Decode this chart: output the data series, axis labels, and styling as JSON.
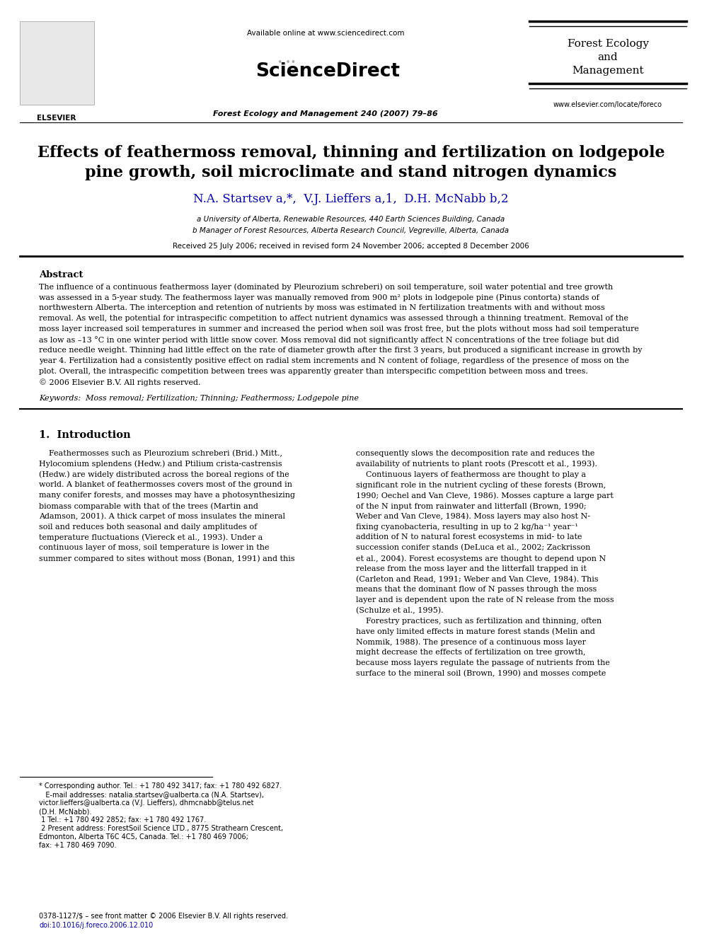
{
  "title_line1": "Effects of feathermoss removal, thinning and fertilization on lodgepole",
  "title_line2": "pine growth, soil microclimate and stand nitrogen dynamics",
  "authors": "N.A. Startsev a,*,  V.J. Lieffers a,1,  D.H. McNabb b,2",
  "affil_a": "a University of Alberta, Renewable Resources, 440 Earth Sciences Building, Canada",
  "affil_b": "b Manager of Forest Resources, Alberta Research Council, Vegreville, Alberta, Canada",
  "received": "Received 25 July 2006; received in revised form 24 November 2006; accepted 8 December 2006",
  "journal_header": "Forest Ecology and Management 240 (2007) 79–86",
  "available_online": "Available online at www.sciencedirect.com",
  "journal_name_line1": "Forest Ecology",
  "journal_name_line2": "and",
  "journal_name_line3": "Management",
  "website": "www.elsevier.com/locate/foreco",
  "abstract_title": "Abstract",
  "keywords": "Keywords:  Moss removal; Fertilization; Thinning; Feathermoss; Lodgepole pine",
  "section1_title": "1.  Introduction",
  "footnote_star": "* Corresponding author. Tel.: +1 780 492 3417; fax: +1 780 492 6827.",
  "footnote_email1": "   E-mail addresses: natalia.startsev@ualberta.ca (N.A. Startsev),",
  "footnote_email2": "victor.lieffers@ualberta.ca (V.J. Lieffers), dhmcnabb@telus.net",
  "footnote_email3": "(D.H. McNabb).",
  "footnote_1": "1 Tel.: +1 780 492 2852; fax: +1 780 492 1767.",
  "footnote_2a": "2 Present address: ForestSoil Science LTD., 8775 Strathearn Crescent,",
  "footnote_2b": "Edmonton, Alberta T6C 4C5, Canada. Tel.: +1 780 469 7006;",
  "footnote_2c": "fax: +1 780 469 7090.",
  "issn": "0378-1127/$ – see front matter © 2006 Elsevier B.V. All rights reserved.",
  "doi": "doi:10.1016/j.foreco.2006.12.010",
  "bg_color": "#ffffff",
  "text_color": "#000000",
  "blue_color": "#0000bb",
  "header_bg": "#ffffff"
}
